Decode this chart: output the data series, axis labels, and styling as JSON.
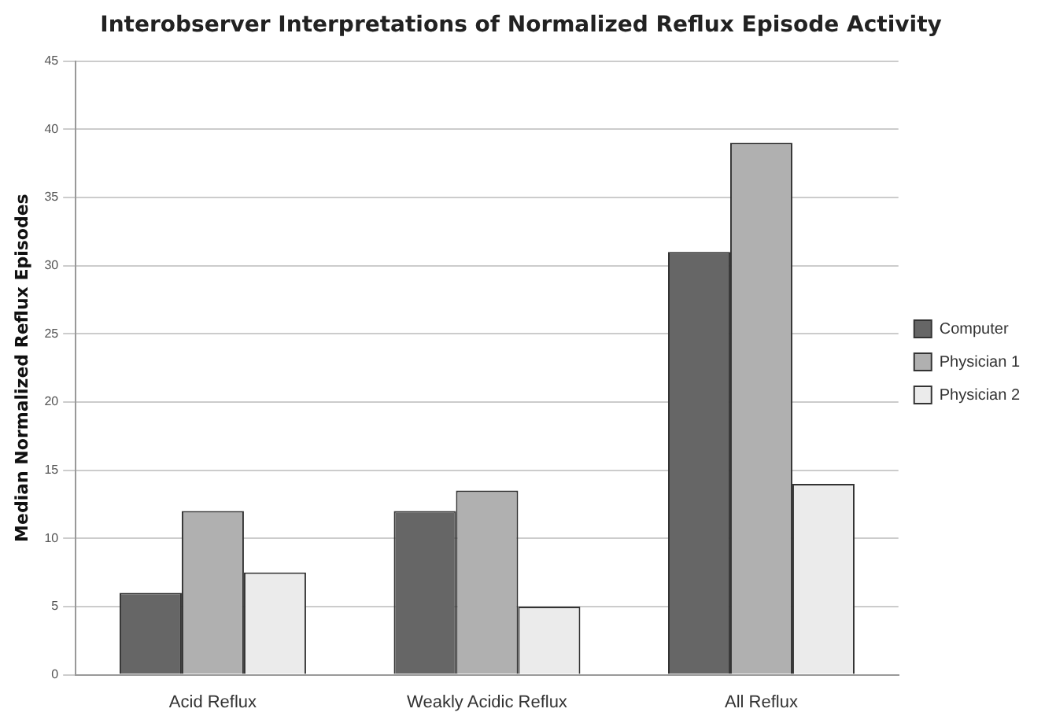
{
  "chart_data": {
    "type": "bar",
    "title": "Interobserver Interpretations of Normalized Reflux Episode Activity",
    "ylabel": "Median Normalized Reflux Episodes",
    "categories": [
      "Acid Reflux",
      "Weakly Acidic Reflux",
      "All Reflux"
    ],
    "series": [
      {
        "name": "Computer",
        "color": "#666666",
        "values": [
          6,
          12,
          31
        ]
      },
      {
        "name": "Physician 1",
        "color": "#b0b0b0",
        "values": [
          12,
          13.5,
          39
        ]
      },
      {
        "name": "Physician 2",
        "color": "#ebebeb",
        "values": [
          7.5,
          5,
          14
        ]
      }
    ],
    "ylim": [
      0,
      45
    ],
    "yticks": [
      0,
      5,
      10,
      15,
      20,
      25,
      30,
      35,
      40,
      45
    ],
    "grid": "y",
    "legend": "right"
  }
}
